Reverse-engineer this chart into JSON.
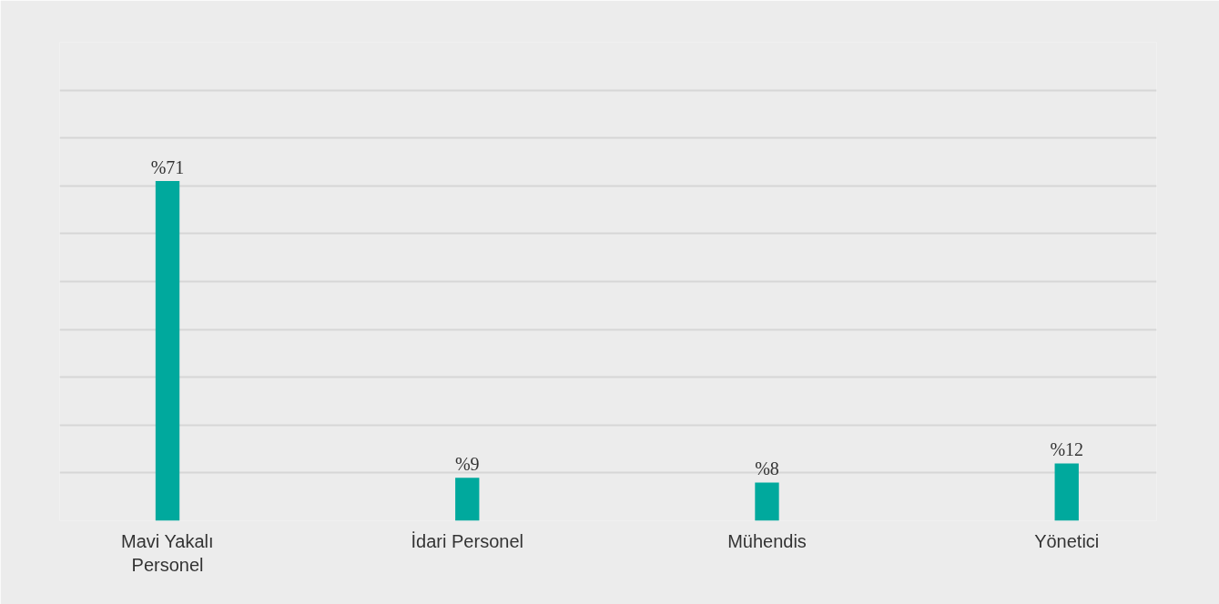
{
  "chart_data": {
    "type": "bar",
    "categories": [
      "Mavi Yakalı\nPersonel",
      "İdari Personel",
      "Mühendis",
      "Yönetici"
    ],
    "values": [
      71,
      9,
      8,
      12
    ],
    "value_labels": [
      "%71",
      "%9",
      "%8",
      "%12"
    ],
    "color": "#00a99d",
    "ylim": [
      0,
      100
    ],
    "yticks": [
      0,
      10,
      20,
      30,
      40,
      50,
      60,
      70,
      80,
      90,
      100
    ],
    "grid": "y",
    "tick_labels": "x"
  }
}
